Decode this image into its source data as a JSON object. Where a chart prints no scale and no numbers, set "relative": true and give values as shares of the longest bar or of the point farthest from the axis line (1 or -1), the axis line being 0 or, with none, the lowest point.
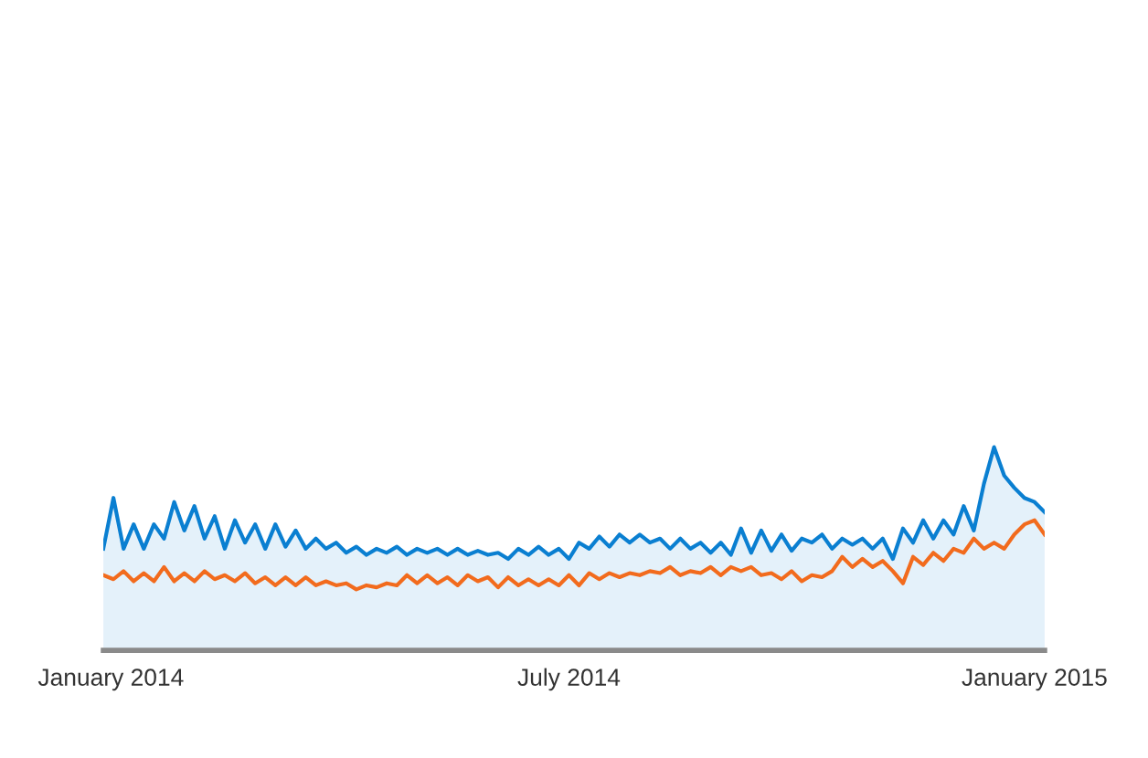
{
  "chart_data": {
    "type": "line",
    "relative": true,
    "x": [
      "2013-12-29",
      "2014-01-02",
      "2014-01-06",
      "2014-01-10",
      "2014-01-14",
      "2014-01-18",
      "2014-01-22",
      "2014-01-26",
      "2014-01-30",
      "2014-02-03",
      "2014-02-07",
      "2014-02-11",
      "2014-02-15",
      "2014-02-19",
      "2014-02-23",
      "2014-02-27",
      "2014-03-03",
      "2014-03-07",
      "2014-03-11",
      "2014-03-15",
      "2014-03-19",
      "2014-03-23",
      "2014-03-27",
      "2014-03-31",
      "2014-04-04",
      "2014-04-08",
      "2014-04-12",
      "2014-04-16",
      "2014-04-20",
      "2014-04-24",
      "2014-04-28",
      "2014-05-02",
      "2014-05-06",
      "2014-05-10",
      "2014-05-14",
      "2014-05-18",
      "2014-05-22",
      "2014-05-26",
      "2014-05-30",
      "2014-06-03",
      "2014-06-07",
      "2014-06-11",
      "2014-06-15",
      "2014-06-19",
      "2014-06-23",
      "2014-06-27",
      "2014-07-01",
      "2014-07-05",
      "2014-07-09",
      "2014-07-13",
      "2014-07-17",
      "2014-07-21",
      "2014-07-25",
      "2014-07-29",
      "2014-08-02",
      "2014-08-06",
      "2014-08-10",
      "2014-08-14",
      "2014-08-18",
      "2014-08-22",
      "2014-08-26",
      "2014-08-30",
      "2014-09-03",
      "2014-09-07",
      "2014-09-11",
      "2014-09-15",
      "2014-09-19",
      "2014-09-23",
      "2014-09-27",
      "2014-10-01",
      "2014-10-05",
      "2014-10-09",
      "2014-10-13",
      "2014-10-17",
      "2014-10-21",
      "2014-10-25",
      "2014-10-29",
      "2014-11-02",
      "2014-11-06",
      "2014-11-10",
      "2014-11-14",
      "2014-11-18",
      "2014-11-22",
      "2014-11-26",
      "2014-11-30",
      "2014-12-04",
      "2014-12-08",
      "2014-12-12",
      "2014-12-16",
      "2014-12-20",
      "2014-12-24",
      "2014-12-28",
      "2015-01-01",
      "2015-01-05"
    ],
    "xlim": [
      "2013-12-29",
      "2015-01-05"
    ],
    "xticks": [
      {
        "value": "2014-01-01",
        "label": "January 2014"
      },
      {
        "value": "2014-07-01",
        "label": "July 2014"
      },
      {
        "value": "2015-01-01",
        "label": "January 2015"
      }
    ],
    "series": [
      {
        "type": "area",
        "color": "#0a7fd1",
        "values": [
          0.5,
          0.75,
          0.5,
          0.62,
          0.5,
          0.62,
          0.55,
          0.73,
          0.59,
          0.71,
          0.55,
          0.66,
          0.5,
          0.64,
          0.53,
          0.62,
          0.5,
          0.62,
          0.51,
          0.59,
          0.5,
          0.55,
          0.5,
          0.53,
          0.48,
          0.51,
          0.47,
          0.5,
          0.48,
          0.51,
          0.47,
          0.5,
          0.48,
          0.5,
          0.47,
          0.5,
          0.47,
          0.49,
          0.47,
          0.48,
          0.45,
          0.5,
          0.47,
          0.51,
          0.47,
          0.5,
          0.45,
          0.53,
          0.5,
          0.56,
          0.51,
          0.57,
          0.53,
          0.57,
          0.53,
          0.55,
          0.5,
          0.55,
          0.5,
          0.53,
          0.48,
          0.53,
          0.47,
          0.6,
          0.48,
          0.59,
          0.49,
          0.57,
          0.49,
          0.55,
          0.53,
          0.57,
          0.5,
          0.55,
          0.52,
          0.55,
          0.5,
          0.55,
          0.45,
          0.6,
          0.53,
          0.64,
          0.55,
          0.64,
          0.57,
          0.71,
          0.59,
          0.82,
          1.0,
          0.86,
          0.8,
          0.75,
          0.73,
          0.68
        ]
      },
      {
        "color": "#f26b1d",
        "values": [
          0.37,
          0.35,
          0.39,
          0.34,
          0.38,
          0.34,
          0.41,
          0.34,
          0.38,
          0.34,
          0.39,
          0.35,
          0.37,
          0.34,
          0.38,
          0.33,
          0.36,
          0.32,
          0.36,
          0.32,
          0.36,
          0.32,
          0.34,
          0.32,
          0.33,
          0.3,
          0.32,
          0.31,
          0.33,
          0.32,
          0.37,
          0.33,
          0.37,
          0.33,
          0.36,
          0.32,
          0.37,
          0.34,
          0.36,
          0.31,
          0.36,
          0.32,
          0.35,
          0.32,
          0.35,
          0.32,
          0.37,
          0.32,
          0.38,
          0.35,
          0.38,
          0.36,
          0.38,
          0.37,
          0.39,
          0.38,
          0.41,
          0.37,
          0.39,
          0.38,
          0.41,
          0.37,
          0.41,
          0.39,
          0.41,
          0.37,
          0.38,
          0.35,
          0.39,
          0.34,
          0.37,
          0.36,
          0.39,
          0.46,
          0.41,
          0.45,
          0.41,
          0.44,
          0.39,
          0.33,
          0.46,
          0.42,
          0.48,
          0.44,
          0.5,
          0.48,
          0.55,
          0.5,
          0.53,
          0.5,
          0.57,
          0.62,
          0.64,
          0.57
        ]
      }
    ],
    "marker": "none",
    "line_style": "solid"
  }
}
